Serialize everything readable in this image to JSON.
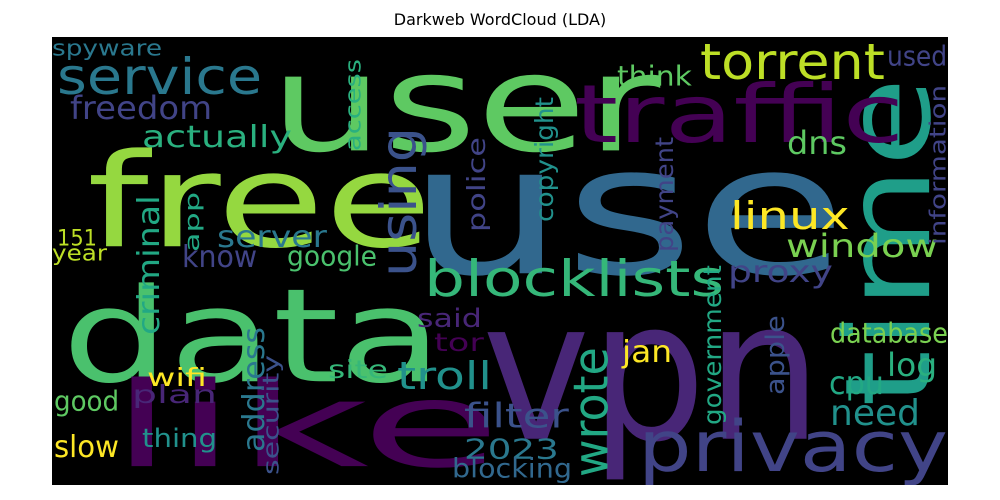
{
  "chart_data": {
    "type": "wordcloud",
    "title": "Darkweb WordCloud (LDA)",
    "background": "#000000",
    "words": [
      {
        "text": "use",
        "color": "#31688e"
      },
      {
        "text": "user",
        "color": "#5ec962"
      },
      {
        "text": "data",
        "color": "#4ac16d"
      },
      {
        "text": "vpn",
        "color": "#482677"
      },
      {
        "text": "like",
        "color": "#440154"
      },
      {
        "text": "free",
        "color": "#95d840"
      },
      {
        "text": "time",
        "color": "#1f9e89"
      },
      {
        "text": "traffic",
        "color": "#440154"
      },
      {
        "text": "privacy",
        "color": "#414487"
      },
      {
        "text": "service",
        "color": "#2a788e"
      },
      {
        "text": "torrent",
        "color": "#bddf26"
      },
      {
        "text": "blocklists",
        "color": "#35b779"
      },
      {
        "text": "using",
        "color": "#3b528b"
      },
      {
        "text": "wrote",
        "color": "#22a884"
      },
      {
        "text": "freedom",
        "color": "#414487"
      },
      {
        "text": "actually",
        "color": "#2ab07f"
      },
      {
        "text": "linux",
        "color": "#fde725"
      },
      {
        "text": "window",
        "color": "#7ad151"
      },
      {
        "text": "server",
        "color": "#2a788e"
      },
      {
        "text": "proxy",
        "color": "#414487"
      },
      {
        "text": "troll",
        "color": "#21918c"
      },
      {
        "text": "filter",
        "color": "#3b528b"
      },
      {
        "text": "need",
        "color": "#21918c"
      },
      {
        "text": "log",
        "color": "#2ab07f"
      },
      {
        "text": "cpu",
        "color": "#22a884"
      },
      {
        "text": "dns",
        "color": "#5ec962"
      },
      {
        "text": "know",
        "color": "#414487"
      },
      {
        "text": "google",
        "color": "#4ac16d"
      },
      {
        "text": "think",
        "color": "#5ec962"
      },
      {
        "text": "used",
        "color": "#414487"
      },
      {
        "text": "spyware",
        "color": "#2a788e"
      },
      {
        "text": "database",
        "color": "#7ad151"
      },
      {
        "text": "2023",
        "color": "#2a788e"
      },
      {
        "text": "address",
        "color": "#2a788e"
      },
      {
        "text": "blocking",
        "color": "#31688e"
      },
      {
        "text": "thing",
        "color": "#21918c"
      },
      {
        "text": "slow",
        "color": "#fde725"
      },
      {
        "text": "good",
        "color": "#5ec962"
      },
      {
        "text": "wifi",
        "color": "#fde725"
      },
      {
        "text": "plan",
        "color": "#482677"
      },
      {
        "text": "site",
        "color": "#35b779"
      },
      {
        "text": "said",
        "color": "#482677"
      },
      {
        "text": "tor",
        "color": "#440154"
      },
      {
        "text": "jan",
        "color": "#fde725"
      },
      {
        "text": "year",
        "color": "#bddf26"
      },
      {
        "text": "151",
        "color": "#bddf26"
      },
      {
        "text": "app",
        "color": "#22a884"
      },
      {
        "text": "access",
        "color": "#2ab07f"
      },
      {
        "text": "copyright",
        "color": "#21918c"
      },
      {
        "text": "police",
        "color": "#414487"
      },
      {
        "text": "payment",
        "color": "#414487"
      },
      {
        "text": "criminal",
        "color": "#22a884"
      },
      {
        "text": "security",
        "color": "#3b528b"
      },
      {
        "text": "government",
        "color": "#22a884"
      },
      {
        "text": "apple",
        "color": "#3b528b"
      },
      {
        "text": "information",
        "color": "#414487"
      }
    ]
  }
}
